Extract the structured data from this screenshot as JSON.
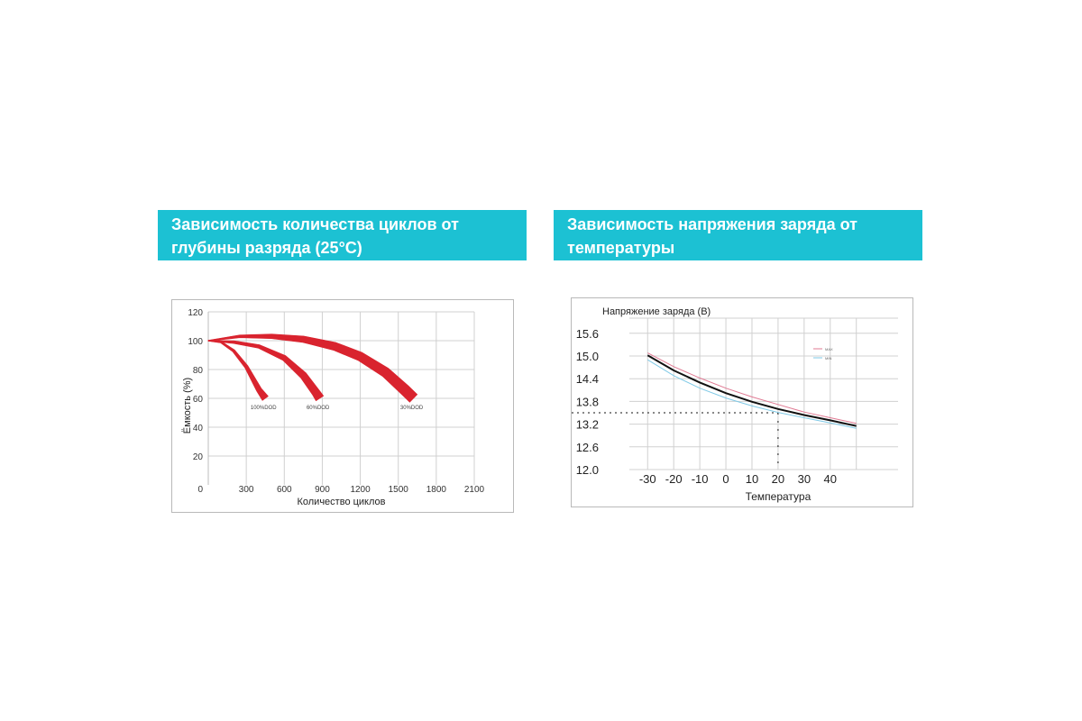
{
  "left_panel": {
    "title_lines": [
      "Зависимость количества циклов от",
      "глубины разряда (25°C)"
    ]
  },
  "right_panel": {
    "title_lines": [
      "Зависимость напряжения заряда от",
      "температуры"
    ]
  },
  "chart_data": [
    {
      "type": "line",
      "title": "",
      "xlabel": "Количество циклов",
      "ylabel": "Ёмкость (%)",
      "xlim": [
        0,
        2100
      ],
      "ylim": [
        0,
        120
      ],
      "x_ticks": [
        "0",
        "300",
        "600",
        "900",
        "1200",
        "1500",
        "1800",
        "2100"
      ],
      "x_tick_values": [
        0,
        300,
        600,
        900,
        1200,
        1500,
        1800,
        2100
      ],
      "y_ticks": [
        "20",
        "40",
        "60",
        "80",
        "100",
        "120"
      ],
      "y_tick_values": [
        20,
        40,
        60,
        80,
        100,
        120
      ],
      "grid": true,
      "line_color": "#d9232e",
      "series": [
        {
          "name": "100%DOD",
          "x": [
            0,
            100,
            200,
            300,
            400,
            450
          ],
          "y": [
            100,
            99,
            93,
            82,
            66,
            60
          ],
          "width": [
            1,
            2,
            3,
            4,
            6,
            8
          ]
        },
        {
          "name": "60%DOD",
          "x": [
            0,
            200,
            400,
            600,
            750,
            850,
            880
          ],
          "y": [
            100,
            99,
            96,
            88,
            76,
            64,
            60
          ],
          "width": [
            1,
            3,
            4,
            6,
            8,
            9,
            10
          ]
        },
        {
          "name": "30%DOD",
          "x": [
            0,
            250,
            500,
            750,
            1000,
            1200,
            1400,
            1550,
            1620
          ],
          "y": [
            100,
            103,
            103,
            101,
            96,
            89,
            78,
            66,
            60
          ],
          "width": [
            1,
            3,
            5,
            7,
            9,
            10,
            11,
            12,
            12
          ]
        }
      ]
    },
    {
      "type": "line",
      "title": "Напряжение заряда (В)",
      "xlabel": "Температура",
      "ylabel": "",
      "xlim": [
        -37,
        66
      ],
      "ylim": [
        12.0,
        16.0
      ],
      "x_ticks": [
        "-30",
        "-20",
        "-10",
        "0",
        "10",
        "20",
        "30",
        "40"
      ],
      "x_tick_values": [
        -30,
        -20,
        -10,
        0,
        10,
        20,
        30,
        40
      ],
      "y_ticks": [
        "12.0",
        "12.6",
        "13.2",
        "13.8",
        "14.4",
        "15.0",
        "15.6"
      ],
      "y_tick_values": [
        12.0,
        12.6,
        13.2,
        13.8,
        14.4,
        15.0,
        15.6
      ],
      "grid": true,
      "reference_point": {
        "x": 20,
        "y": 13.5
      },
      "legend": {
        "placement": "top-right",
        "items": [
          "MAX",
          "MIN"
        ]
      },
      "series": [
        {
          "name": "MAX",
          "color": "#e07a93",
          "x": [
            -30,
            -20,
            -10,
            0,
            10,
            20,
            30,
            40,
            50
          ],
          "y": [
            15.08,
            14.72,
            14.42,
            14.15,
            13.92,
            13.72,
            13.52,
            13.37,
            13.22
          ]
        },
        {
          "name": "",
          "color": "#111111",
          "x": [
            -30,
            -20,
            -10,
            0,
            10,
            20,
            30,
            40,
            50
          ],
          "y": [
            15.02,
            14.62,
            14.3,
            14.02,
            13.79,
            13.6,
            13.44,
            13.3,
            13.15
          ]
        },
        {
          "name": "MIN",
          "color": "#7fc9e6",
          "x": [
            -30,
            -20,
            -10,
            0,
            10,
            20,
            30,
            40,
            50
          ],
          "y": [
            14.9,
            14.48,
            14.15,
            13.89,
            13.68,
            13.51,
            13.37,
            13.23,
            13.09
          ]
        }
      ]
    }
  ]
}
